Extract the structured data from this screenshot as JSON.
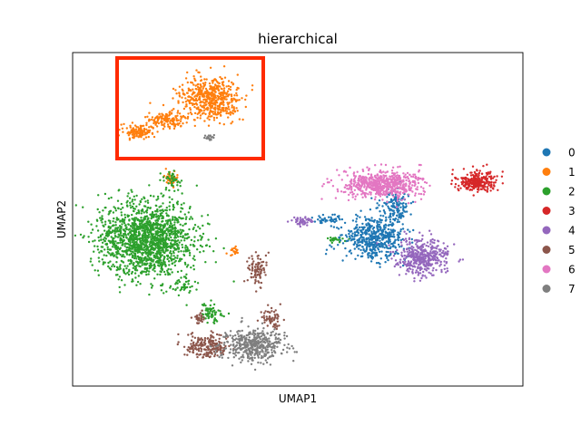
{
  "chart_data": {
    "type": "scatter",
    "title": "hierarchical",
    "xlabel": "UMAP1",
    "ylabel": "UMAP2",
    "xticks": false,
    "yticks": false,
    "grid": false,
    "legend_position": "right",
    "highlight_box_color": "#ff2a00",
    "categories": [
      "0",
      "1",
      "2",
      "3",
      "4",
      "5",
      "6",
      "7"
    ],
    "colors": [
      "#1f77b4",
      "#ff7f0e",
      "#2ca02c",
      "#d62728",
      "#9467bd",
      "#8c564b",
      "#e377c2",
      "#7f7f7f"
    ]
  }
}
